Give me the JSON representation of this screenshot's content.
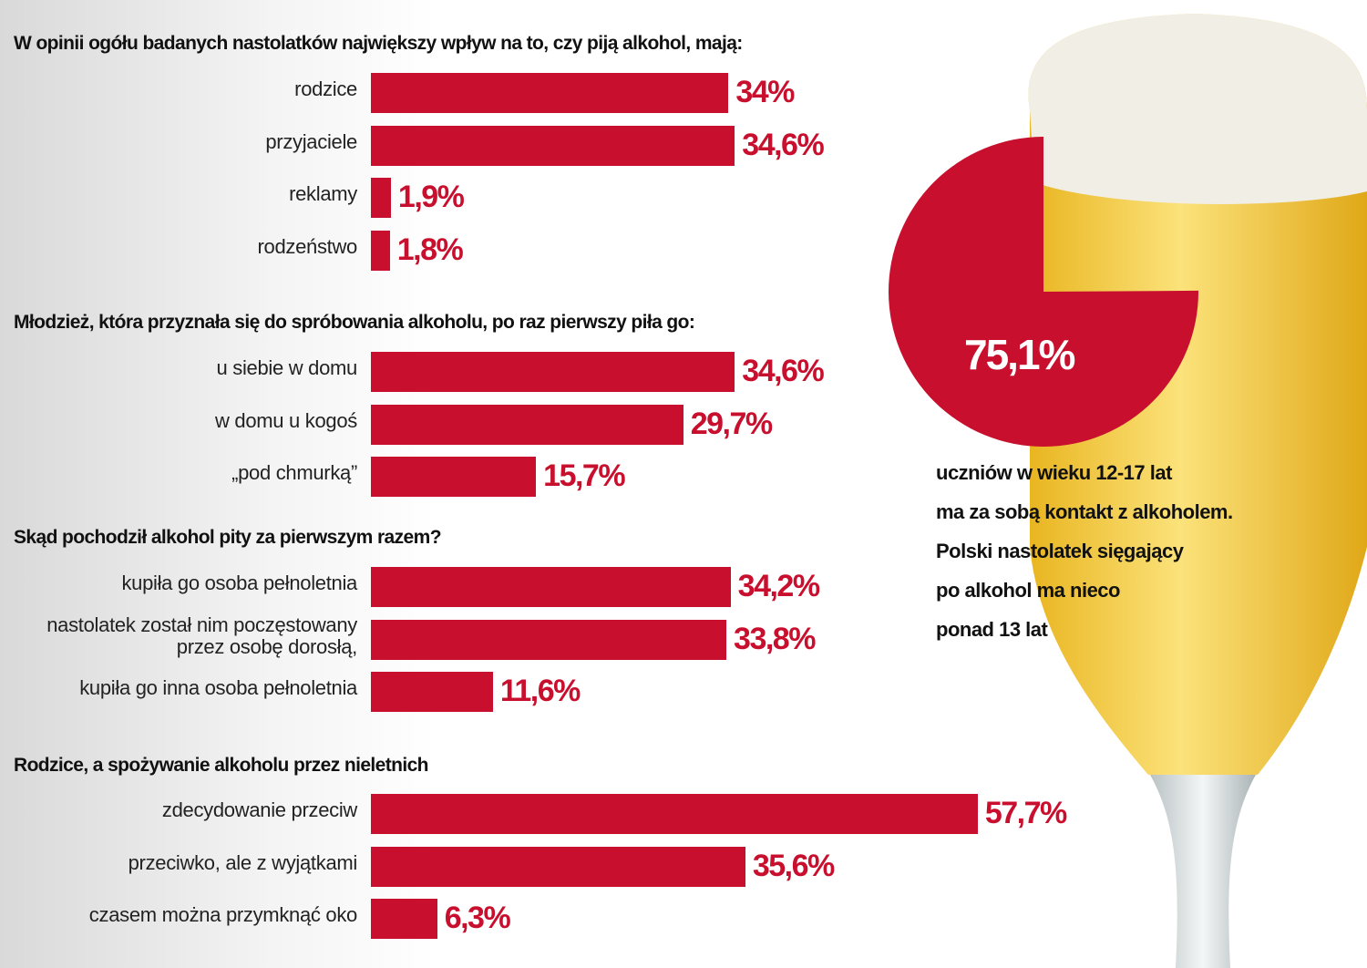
{
  "chart_data": [
    {
      "type": "bar",
      "orientation": "horizontal",
      "color": "#c8102e",
      "title": "W opinii ogółu badanych nastolatków największy wpływ na to, czy piją alkohol, mają:",
      "categories": [
        "rodzice",
        "przyjaciele",
        "reklamy",
        "rodzeństwo"
      ],
      "values": [
        34,
        34.6,
        1.9,
        1.8
      ],
      "value_labels": [
        "34%",
        "34,6%",
        "1,9%",
        "1,8%"
      ]
    },
    {
      "type": "bar",
      "orientation": "horizontal",
      "color": "#c8102e",
      "title": "Młodzież, która przyznała się do spróbowania alkoholu, po raz pierwszy piła go:",
      "categories": [
        "u siebie w domu",
        "w domu u kogoś",
        "„pod chmurką”"
      ],
      "values": [
        34.6,
        29.7,
        15.7
      ],
      "value_labels": [
        "34,6%",
        "29,7%",
        "15,7%"
      ]
    },
    {
      "type": "bar",
      "orientation": "horizontal",
      "color": "#c8102e",
      "title": "Skąd pochodził alkohol pity za pierwszym razem?",
      "categories": [
        "kupiła go osoba pełnoletnia",
        "nastolatek został nim poczęstowany przez osobę dorosłą,",
        "kupiła go inna osoba pełnoletnia"
      ],
      "values": [
        34.2,
        33.8,
        11.6
      ],
      "value_labels": [
        "34,2%",
        "33,8%",
        "11,6%"
      ]
    },
    {
      "type": "bar",
      "orientation": "horizontal",
      "color": "#c8102e",
      "title": "Rodzice, a spożywanie alkoholu przez nieletnich",
      "categories": [
        "zdecydowanie przeciw",
        "przeciwko, ale z wyjątkami",
        "czasem można przymknąć oko"
      ],
      "values": [
        57.7,
        35.6,
        6.3
      ],
      "value_labels": [
        "57,7%",
        "35,6%",
        "6,3%"
      ]
    },
    {
      "type": "pie",
      "color": "#c8102e",
      "values": [
        75.1
      ],
      "value_labels": [
        "75,1%"
      ],
      "note": [
        "uczniów w wieku 12-17 lat",
        "ma za sobą kontakt z alkoholem.",
        "Polski nastolatek sięgający",
        "po alkohol ma nieco",
        "ponad 13 lat"
      ]
    }
  ]
}
